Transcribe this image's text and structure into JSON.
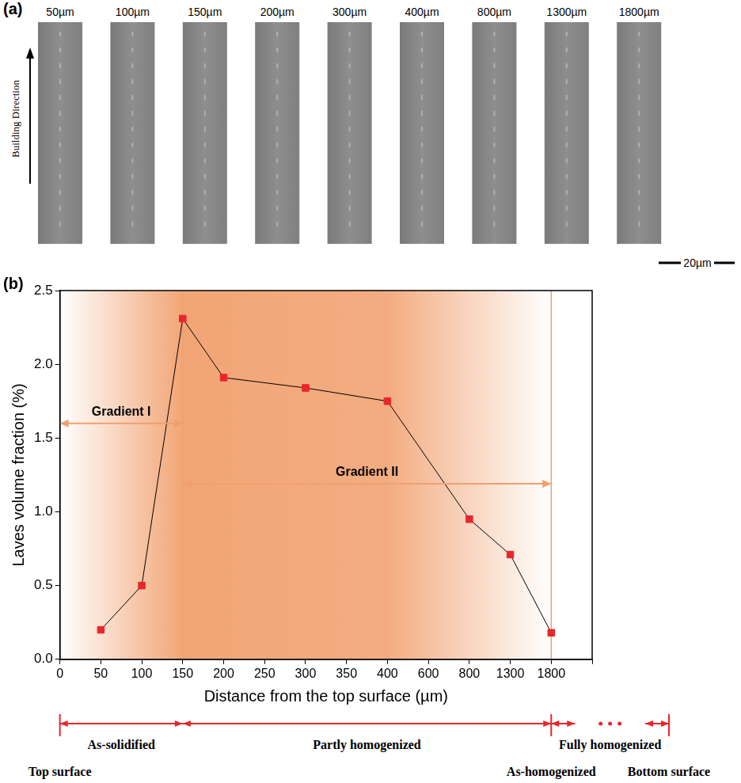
{
  "panel_a": {
    "letter": "(a)",
    "labels": [
      "50µm",
      "100µm",
      "150µm",
      "200µm",
      "300µm",
      "400µm",
      "800µm",
      "1300µm",
      "1800µm"
    ],
    "arrow_label": "Building Direction",
    "scale_bar": "20µm"
  },
  "chart_data": {
    "type": "line",
    "letter": "(b)",
    "x_label": "Distance from the top surface (µm)",
    "y_label": "Laves volume fraction (%)",
    "categories": [
      "0",
      "50",
      "100",
      "150",
      "200",
      "250",
      "300",
      "350",
      "400",
      "600",
      "800",
      "1300",
      "1800",
      null
    ],
    "values": [
      null,
      0.2,
      0.5,
      2.31,
      1.91,
      null,
      1.84,
      null,
      1.75,
      null,
      0.95,
      0.71,
      0.18,
      null
    ],
    "color": "#e8262c",
    "marker": "square",
    "ylim": [
      0,
      2.5
    ],
    "yticks": [
      {
        "value": 0,
        "label": "0.0"
      },
      0.5,
      {
        "value": 1,
        "label": "1.0"
      },
      1.5,
      {
        "value": 2,
        "label": "2.0"
      },
      2.5
    ],
    "grid": false,
    "annotations": [
      {
        "text": "Gradient I",
        "from": "0",
        "to": "150"
      },
      {
        "text": "Gradient II",
        "from": "150",
        "to": "1800"
      }
    ],
    "zones": [
      {
        "label": "As-solidified",
        "from": "0",
        "to": "150"
      },
      {
        "label": "Partly homogenized",
        "from": "150",
        "to": "1800"
      },
      {
        "label": "Fully homogenized",
        "from": "1800",
        "to": null
      }
    ],
    "boundaries": [
      {
        "at": "0",
        "label": "Top surface"
      },
      {
        "at": "1800",
        "label": "As-homogenized"
      },
      {
        "at": null,
        "label": "Bottom surface"
      }
    ]
  }
}
